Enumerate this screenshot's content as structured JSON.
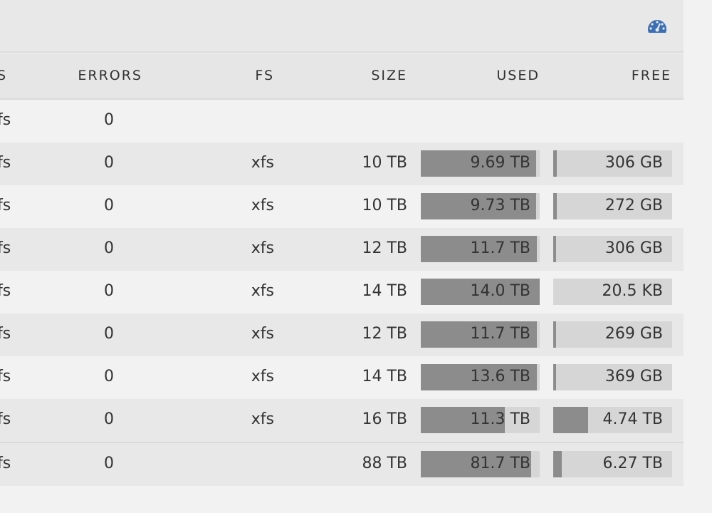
{
  "table": {
    "headers": [
      "S",
      "ERRORS",
      "FS",
      "SIZE",
      "USED",
      "FREE"
    ],
    "rows": [
      {
        "device": "fs",
        "errors": 0
      },
      {
        "device": "fs",
        "errors": 0,
        "fs": "xfs",
        "size": "10 TB",
        "used": "9.69 TB",
        "free": "306 GB",
        "used_bar": 97,
        "free_bar": 3
      },
      {
        "device": "fs",
        "errors": 0,
        "fs": "xfs",
        "size": "10 TB",
        "used": "9.73 TB",
        "free": "272 GB",
        "used_bar": 97,
        "free_bar": 3
      },
      {
        "device": "fs",
        "errors": 0,
        "fs": "xfs",
        "size": "12 TB",
        "used": "11.7 TB",
        "free": "306 GB",
        "used_bar": 97.5,
        "free_bar": 2.5
      },
      {
        "device": "fs",
        "errors": 0,
        "fs": "xfs",
        "size": "14 TB",
        "used": "14.0 TB",
        "free": "20.5 KB",
        "used_bar": 100,
        "free_bar": 0
      },
      {
        "device": "fs",
        "errors": 0,
        "fs": "xfs",
        "size": "12 TB",
        "used": "11.7 TB",
        "free": "269 GB",
        "used_bar": 97.8,
        "free_bar": 2.2
      },
      {
        "device": "fs",
        "errors": 0,
        "fs": "xfs",
        "size": "14 TB",
        "used": "13.6 TB",
        "free": "369 GB",
        "used_bar": 97.4,
        "free_bar": 2.6
      },
      {
        "device": "fs",
        "errors": 0,
        "fs": "xfs",
        "size": "16 TB",
        "used": "11.3 TB",
        "free": "4.74 TB",
        "used_bar": 70.6,
        "free_bar": 29.6
      },
      {
        "device": "fs",
        "errors": 0,
        "size": "88 TB",
        "used": "81.7 TB",
        "free": "6.27 TB",
        "used_bar": 92.8,
        "free_bar": 7.1
      }
    ]
  }
}
